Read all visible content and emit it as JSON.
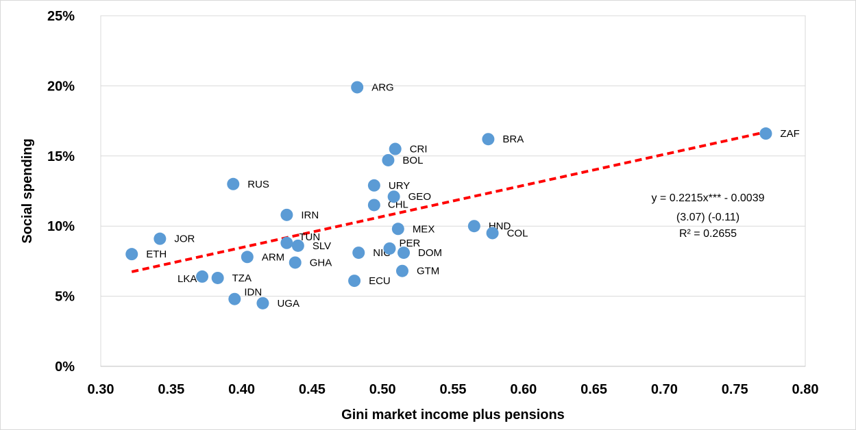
{
  "chart_data": {
    "type": "scatter",
    "xlabel": "Gini market income plus pensions",
    "ylabel": "Social spending",
    "xlim": [
      0.3,
      0.8
    ],
    "ylim": [
      0,
      0.25
    ],
    "xticks": [
      "0.30",
      "0.35",
      "0.40",
      "0.45",
      "0.50",
      "0.55",
      "0.60",
      "0.65",
      "0.70",
      "0.75",
      "0.80"
    ],
    "yticks": [
      "0%",
      "5%",
      "10%",
      "15%",
      "20%",
      "25%"
    ],
    "grid": "horizontal",
    "marker_color": "#5b9bd5",
    "trendline_color": "#ff0000",
    "points": [
      {
        "label": "ETH",
        "x": 0.322,
        "y": 0.08
      },
      {
        "label": "JOR",
        "x": 0.342,
        "y": 0.091
      },
      {
        "label": "LKA",
        "x": 0.372,
        "y": 0.064
      },
      {
        "label": "TZA",
        "x": 0.383,
        "y": 0.063
      },
      {
        "label": "RUS",
        "x": 0.394,
        "y": 0.13
      },
      {
        "label": "IDN",
        "x": 0.395,
        "y": 0.048
      },
      {
        "label": "ARM",
        "x": 0.404,
        "y": 0.078
      },
      {
        "label": "UGA",
        "x": 0.415,
        "y": 0.045
      },
      {
        "label": "IRN",
        "x": 0.432,
        "y": 0.108
      },
      {
        "label": "TUN",
        "x": 0.432,
        "y": 0.088
      },
      {
        "label": "SLV",
        "x": 0.44,
        "y": 0.086
      },
      {
        "label": "GHA",
        "x": 0.438,
        "y": 0.074
      },
      {
        "label": "ECU",
        "x": 0.48,
        "y": 0.061
      },
      {
        "label": "ARG",
        "x": 0.482,
        "y": 0.199
      },
      {
        "label": "NIC",
        "x": 0.483,
        "y": 0.081
      },
      {
        "label": "URY",
        "x": 0.494,
        "y": 0.129
      },
      {
        "label": "CHL",
        "x": 0.494,
        "y": 0.115
      },
      {
        "label": "BOL",
        "x": 0.504,
        "y": 0.147
      },
      {
        "label": "PER",
        "x": 0.505,
        "y": 0.084
      },
      {
        "label": "GEO",
        "x": 0.508,
        "y": 0.121
      },
      {
        "label": "CRI",
        "x": 0.509,
        "y": 0.155
      },
      {
        "label": "MEX",
        "x": 0.511,
        "y": 0.098
      },
      {
        "label": "DOM",
        "x": 0.515,
        "y": 0.081
      },
      {
        "label": "GTM",
        "x": 0.514,
        "y": 0.068
      },
      {
        "label": "HND",
        "x": 0.565,
        "y": 0.1
      },
      {
        "label": "BRA",
        "x": 0.575,
        "y": 0.162
      },
      {
        "label": "COL",
        "x": 0.578,
        "y": 0.095
      },
      {
        "label": "ZAF",
        "x": 0.772,
        "y": 0.166
      }
    ],
    "trendline": {
      "slope": 0.2215,
      "intercept": -0.0039,
      "x_range": [
        0.322,
        0.772
      ]
    },
    "annotations": [
      "y = 0.2215x*** - 0.0039",
      "(3.07)     (-0.11)",
      "R² = 0.2655"
    ]
  }
}
